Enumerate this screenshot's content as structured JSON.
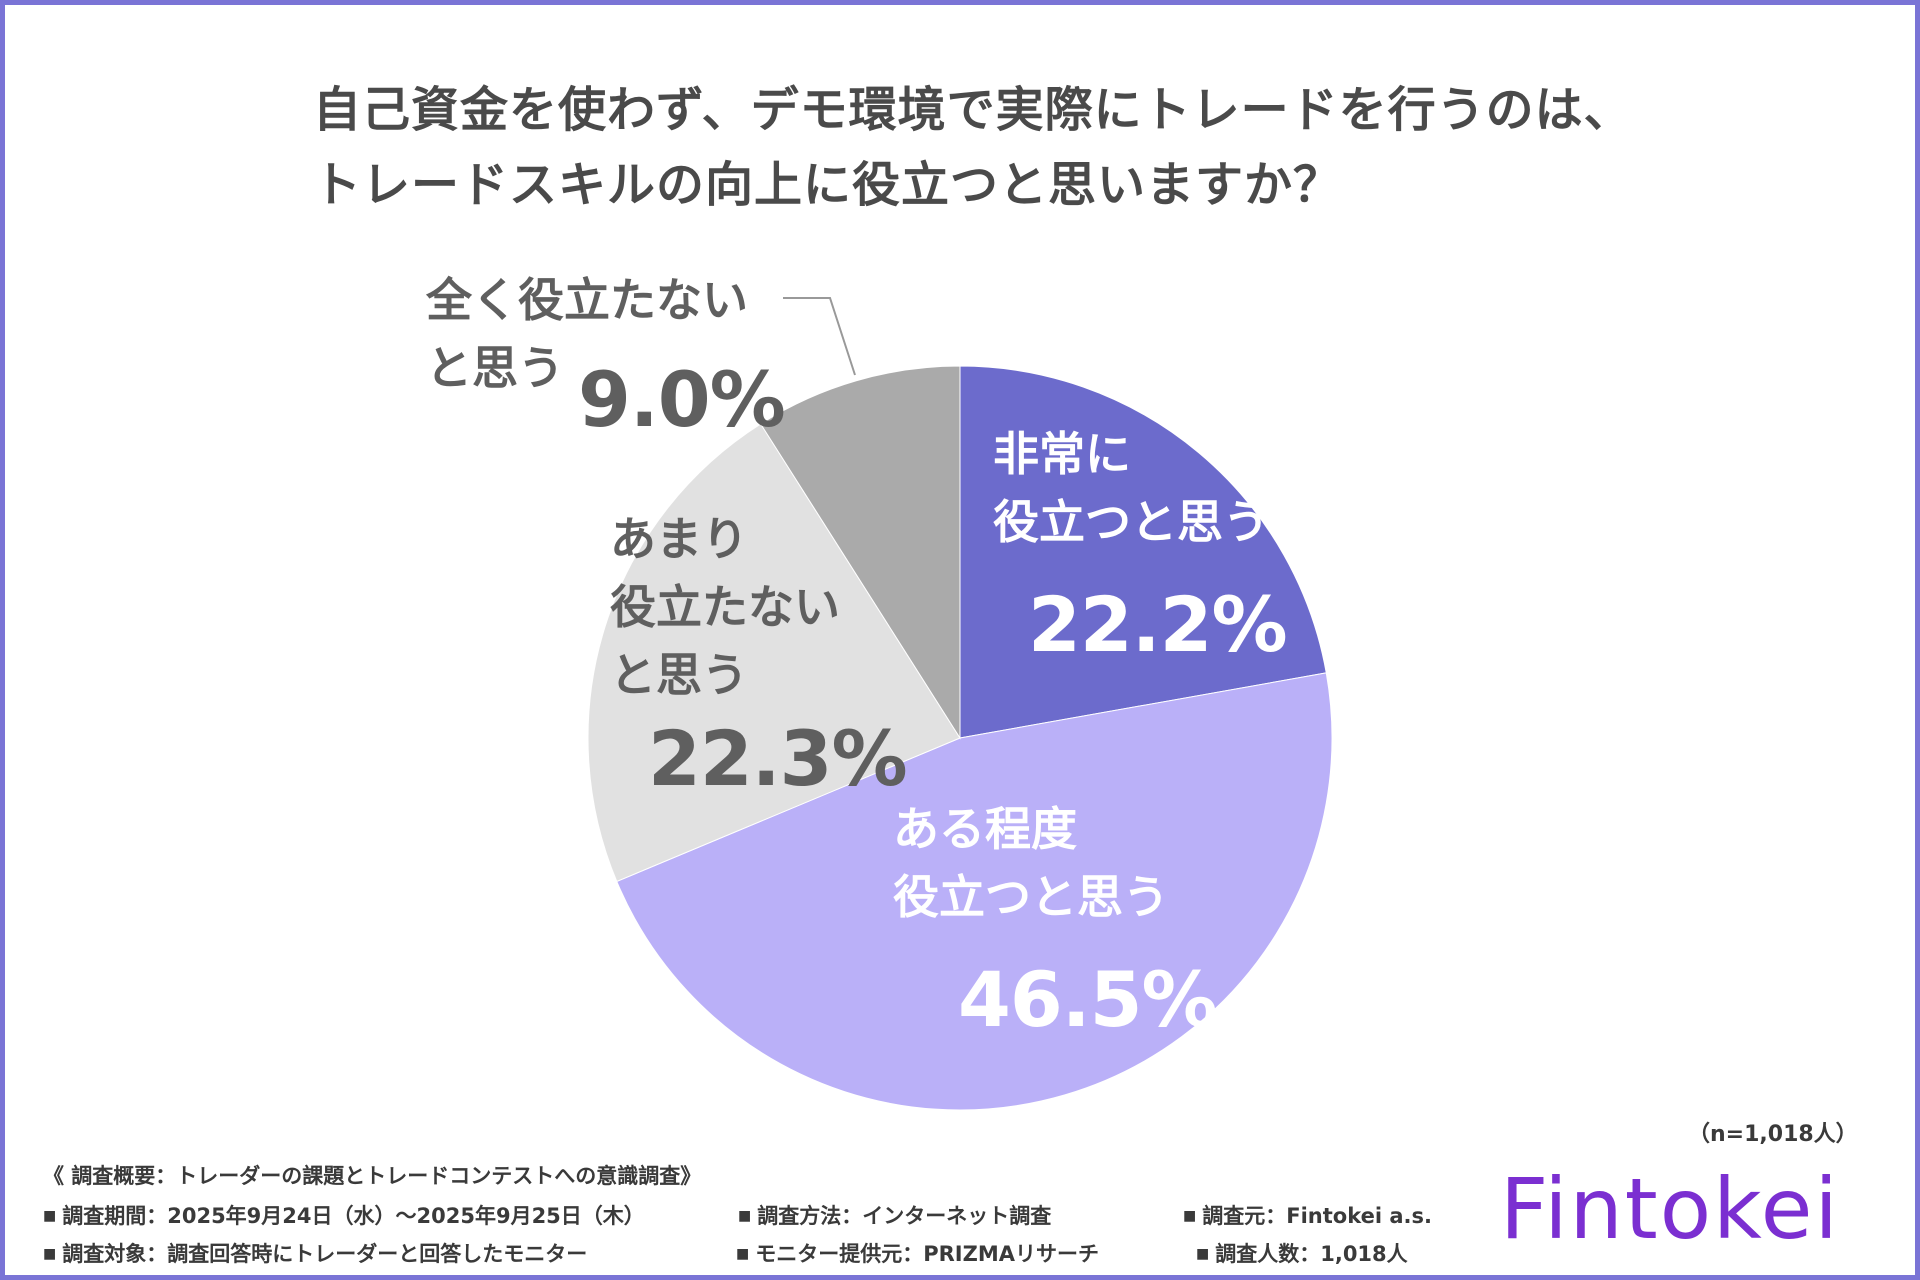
{
  "title": {
    "line1": "自己資金を使わず、デモ環境で実際にトレードを行うのは、",
    "line2": "トレードスキルの向上に役立つと思いますか？"
  },
  "chart_data": {
    "type": "pie",
    "title": "自己資金を使わず、デモ環境で実際にトレードを行うのは、トレードスキルの向上に役立つと思いますか？",
    "start": "12 o'clock",
    "direction": "clockwise",
    "slices": [
      {
        "label": "非常に役立つと思う",
        "label_lines": [
          "非常に",
          "役立つと思う"
        ],
        "value": 22.2,
        "value_text": "22.2%",
        "color": "#6c6bcc"
      },
      {
        "label": "ある程度役立つと思う",
        "label_lines": [
          "ある程度",
          "役立つと思う"
        ],
        "value": 46.5,
        "value_text": "46.5%",
        "color": "#bab0f8"
      },
      {
        "label": "あまり役立たないと思う",
        "label_lines": [
          "あまり",
          "役立たない",
          "と思う"
        ],
        "value": 22.3,
        "value_text": "22.3%",
        "color": "#e1e1e1"
      },
      {
        "label": "全く役立たないと思う",
        "label_lines": [
          "全く役立たない",
          "と思う"
        ],
        "value": 9.0,
        "value_text": "9.0%",
        "color": "#aaaaaa"
      }
    ],
    "sample_size": "（n=1,018人）"
  },
  "footer": {
    "heading": "《 調査概要：トレーダーの課題とトレードコンテストへの意識調査》",
    "period": "調査期間：2025年9月24日（水）～2025年9月25日（木）",
    "method": "調査方法：インターネット調査",
    "source": "調査元：Fintokei a.s.",
    "target": "調査対象：調査回答時にトレーダーと回答したモニター",
    "provider": "モニター提供元：PRIZMAリサーチ",
    "count": "調査人数：1,018人"
  },
  "logo": {
    "text": "Fintokei",
    "color": "#7b2fd1"
  },
  "colors": {
    "border": "#7a74d6",
    "title": "#4a4a4a"
  }
}
